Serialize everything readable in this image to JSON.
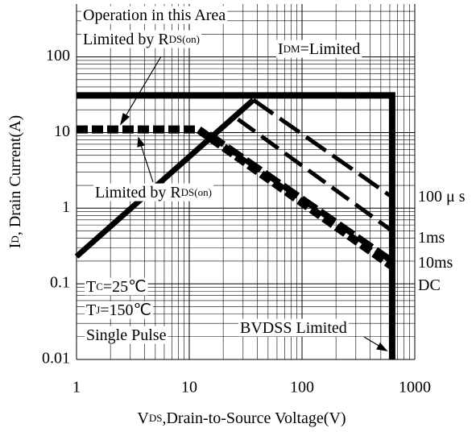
{
  "chart_data": {
    "type": "line",
    "x_label": {
      "parts": [
        "V",
        "DS",
        ",Drain-to-Source Voltage(V)"
      ]
    },
    "y_label": {
      "parts": [
        "I",
        "D",
        ", Drain Current(A)"
      ]
    },
    "xlim": [
      1,
      1000
    ],
    "ylim": [
      0.01,
      500
    ],
    "xticks": [
      1,
      10,
      100,
      1000
    ],
    "yticks": [
      0.01,
      0.1,
      1,
      10,
      100
    ],
    "log_x": true,
    "log_y": true,
    "grid": true,
    "minor_grid": true,
    "color": "#000000",
    "series": [
      {
        "x": [
          1,
          630,
          630
        ],
        "values": [
          31,
          31,
          0.01
        ],
        "color": "#000000",
        "dash": false
      },
      {
        "x": [
          1,
          37
        ],
        "values": [
          0.23,
          27
        ],
        "color": "#000000",
        "dash": false
      },
      {
        "x": [
          37,
          630
        ],
        "values": [
          27,
          1.4
        ],
        "color": "#000000",
        "dash": true
      },
      {
        "x": [
          27,
          630
        ],
        "values": [
          15,
          0.5
        ],
        "color": "#000000",
        "dash": true
      },
      {
        "x": [
          15,
          630
        ],
        "values": [
          9.5,
          0.2
        ],
        "color": "#000000",
        "dash": true
      },
      {
        "x": [
          1,
          12,
          630
        ],
        "values": [
          11,
          11,
          0.17
        ],
        "color": "#000000",
        "dash": true
      }
    ],
    "annotations": [
      {
        "parts": [
          "Operation in this Area"
        ]
      },
      {
        "parts": [
          "Limited by R",
          "DS(on)"
        ]
      },
      {
        "parts": [
          "I",
          "DM",
          "=Limited"
        ]
      },
      {
        "parts": [
          "Limited by R",
          "DS(on)"
        ]
      },
      {
        "parts": [
          "T",
          "C",
          "=25℃"
        ]
      },
      {
        "parts": [
          "T",
          "J",
          "=150℃"
        ]
      },
      {
        "parts": [
          "Single Pulse"
        ]
      },
      {
        "parts": [
          "BVDSS Limited"
        ]
      },
      {
        "parts": [
          "100 μ s"
        ]
      },
      {
        "parts": [
          "1ms"
        ]
      },
      {
        "parts": [
          "10ms"
        ]
      },
      {
        "parts": [
          "DC"
        ]
      }
    ]
  }
}
